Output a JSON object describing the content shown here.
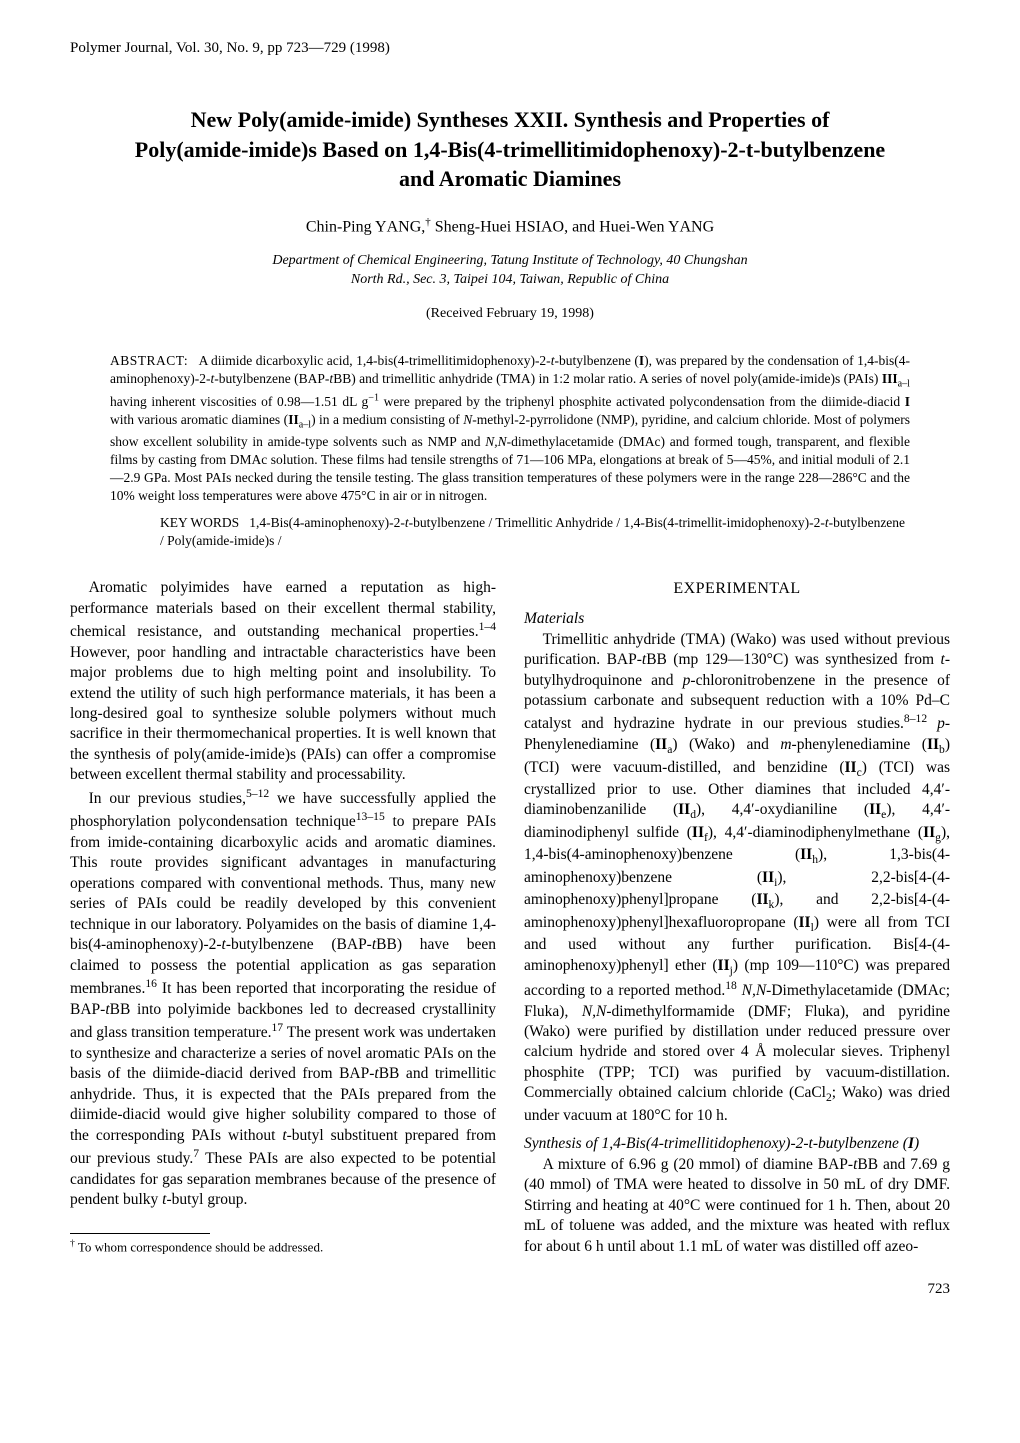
{
  "running_head": "Polymer Journal, Vol. 30, No. 9, pp 723—729 (1998)",
  "title_line1": "New Poly(amide-imide) Syntheses XXII.   Synthesis and Properties of",
  "title_line2": "Poly(amide-imide)s Based on 1,4-Bis(4-trimellitimidophenoxy)-2-t-butylbenzene",
  "title_line3": "and Aromatic Diamines",
  "authors_html": "Chin-Ping Y<span class=\"smallcaps\">ANG</span>,<sup>†</sup> Sheng-Huei H<span class=\"smallcaps\">SIAO</span>, and Huei-Wen Y<span class=\"smallcaps\">ANG</span>",
  "affiliation_line1": "Department of Chemical Engineering, Tatung Institute of Technology, 40 Chungshan",
  "affiliation_line2": "North Rd., Sec. 3, Taipei 104, Taiwan, Republic of China",
  "received": "(Received February 19, 1998)",
  "abstract_label": "ABSTRACT:",
  "abstract_html": "A diimide dicarboxylic acid, 1,4-bis(4-trimellitimidophenoxy)-2-<i>t</i>-butylbenzene (<b>I</b>), was prepared by the condensation of 1,4-bis(4-aminophenoxy)-2-<i>t</i>-butylbenzene (BAP-<i>t</i>BB) and trimellitic anhydride (TMA) in 1:2 molar ratio. A series of novel poly(amide-imide)s (PAIs) <b>III</b><sub>a–l</sub> having inherent viscosities of 0.98—1.51 dL g<sup>−1</sup> were prepared by the triphenyl phosphite activated polycondensation from the diimide-diacid <b>I</b> with various aromatic diamines (<b>II</b><sub>a–l</sub>) in a medium consisting of <i>N</i>-methyl-2-pyrrolidone (NMP), pyridine, and calcium chloride. Most of polymers show excellent solubility in amide-type solvents such as NMP and <i>N,N</i>-dimethylacetamide (DMAc) and formed tough, transparent, and flexible films by casting from DMAc solution. These films had tensile strengths of 71—106 MPa, elongations at break of 5—45%, and initial moduli of 2.1—2.9 GPa. Most PAIs necked during the tensile testing. The glass transition temperatures of these polymers were in the range 228—286°C and the 10% weight loss temperatures were above 475°C in air or in nitrogen.",
  "keywords_label": "KEY WORDS",
  "keywords_html": "1,4-Bis(4-aminophenoxy)-2-<i>t</i>-butylbenzene / Trimellitic Anhydride / 1,4-Bis(4-trimellit-imidophenoxy)-2-<i>t</i>-butylbenzene / Poly(amide-imide)s /",
  "left_col": {
    "p1_html": "Aromatic polyimides have earned a reputation as high-performance materials based on their excellent thermal stability, chemical resistance, and outstanding mechanical properties.<sup>1–4</sup> However, poor handling and intractable characteristics have been major problems due to high melting point and insolubility. To extend the utility of such high performance materials, it has been a long-desired goal to synthesize soluble polymers without much sacrifice in their thermomechanical properties. It is well known that the synthesis of poly(amide-imide)s (PAIs) can offer a compromise between excellent thermal stability and processability.",
    "p2_html": "In our previous studies,<sup>5–12</sup> we have successfully applied the phosphorylation polycondensation technique<sup>13–15</sup> to prepare PAIs from imide-containing dicarboxylic acids and aromatic diamines. This route provides significant advantages in manufacturing operations compared with conventional methods. Thus, many new series of PAIs could be readily developed by this convenient technique in our laboratory. Polyamides on the basis of diamine 1,4-bis(4-aminophenoxy)-2-<i>t</i>-butylbenzene (BAP-<i>t</i>BB) have been claimed to possess the potential application as gas separation membranes.<sup>16</sup> It has been reported that incorporating the residue of BAP-<i>t</i>BB into polyimide backbones led to decreased crystallinity and glass transition temperature.<sup>17</sup> The present work was undertaken to synthesize and characterize a series of novel aromatic PAIs on the basis of the diimide-diacid derived from BAP-<i>t</i>BB and trimellitic anhydride. Thus, it is expected that the PAIs prepared from the diimide-diacid would give higher solubility compared to those of the corresponding PAIs without <i>t</i>-butyl substituent prepared from our previous study.<sup>7</sup> These PAIs are also expected to be potential candidates for gas separation membranes because of the presence of pendent bulky <i>t</i>-butyl group."
  },
  "footnote_html": "<sup>†</sup> To whom correspondence should be addressed.",
  "right_col": {
    "section_heading": "EXPERIMENTAL",
    "sub1": "Materials",
    "p1_html": "Trimellitic anhydride (TMA) (Wako) was used without previous purification. BAP-<i>t</i>BB (mp 129—130°C) was synthesized from <i>t</i>-butylhydroquinone and <i>p</i>-chloronitrobenzene in the presence of potassium carbonate and subsequent reduction with a 10% Pd–C catalyst and hydrazine hydrate in our previous studies.<sup>8–12</sup> <i>p</i>-Phenylenediamine (<b>II</b><sub>a</sub>) (Wako) and <i>m</i>-phenylenediamine (<b>II</b><sub>b</sub>) (TCI) were vacuum-distilled, and benzidine (<b>II</b><sub>c</sub>) (TCI) was crystallized prior to use. Other diamines that included 4,4′-diaminobenzanilide (<b>II</b><sub>d</sub>), 4,4′-oxydianiline (<b>II</b><sub>e</sub>), 4,4′-diaminodiphenyl sulfide (<b>II</b><sub>f</sub>), 4,4′-diaminodiphenylmethane (<b>II</b><sub>g</sub>), 1,4-bis(4-aminophenoxy)benzene (<b>II</b><sub>h</sub>), 1,3-bis(4-aminophenoxy)benzene (<b>II</b><sub>i</sub>), 2,2-bis[4-(4-aminophenoxy)phenyl]propane (<b>II</b><sub>k</sub>), and 2,2-bis[4-(4-aminophenoxy)phenyl]hexafluoropropane (<b>II</b><sub>l</sub>) were all from TCI and used without any further purification. Bis[4-(4-aminophenoxy)phenyl] ether (<b>II</b><sub>j</sub>) (mp 109—110°C) was prepared according to a reported method.<sup>18</sup> <i>N,N</i>-Dimethylacetamide (DMAc; Fluka), <i>N,N</i>-dimethylformamide (DMF; Fluka), and pyridine (Wako) were purified by distillation under reduced pressure over calcium hydride and stored over 4 Å molecular sieves. Triphenyl phosphite (TPP; TCI) was purified by vacuum-distillation. Commercially obtained calcium chloride (CaCl<sub>2</sub>; Wako) was dried under vacuum at 180°C for 10 h.",
    "sub2_html": "Synthesis of 1,4-Bis(4-trimellitidophenoxy)-2-t-butylbenzene (<b>I</b>)",
    "p2_html": "A mixture of 6.96 g (20 mmol) of diamine BAP-<i>t</i>BB and 7.69 g (40 mmol) of TMA were heated to dissolve in 50 mL of dry DMF. Stirring and heating at 40°C were continued for 1 h. Then, about 20 mL of toluene was added, and the mixture was heated with reflux for about 6 h until about 1.1 mL of water was distilled off azeo-"
  },
  "page_number": "723"
}
